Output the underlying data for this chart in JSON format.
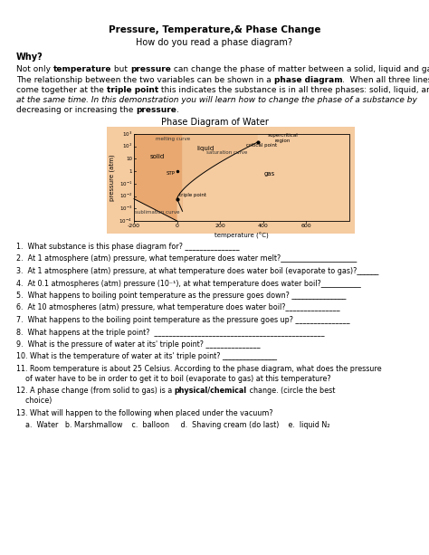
{
  "title": "Pressure, Temperature,& Phase Change",
  "subtitle": "How do you read a phase diagram?",
  "why_label": "Why?",
  "diagram_title": "Phase Diagram of Water",
  "questions": [
    "1.  What substance is this phase diagram for? _______________",
    "2.  At 1 atmosphere (atm) pressure, what temperature does water melt?_____________________",
    "3.  At 1 atmosphere (atm) pressure, at what temperature does water boil (evaporate to gas)?______",
    "4.  At 0.1 atmospheres (atm) pressure (10⁻¹), at what temperature does water boil?___________",
    "5.  What happens to boiling point temperature as the pressure goes down? _______________",
    "6.  At 10 atmospheres (atm) pressure, what temperature does water boil?_______________",
    "7.  What happens to the boiling point temperature as the pressure goes up? _______________",
    "8.  What happens at the triple point?  _______________________________________________",
    "9.  What is the pressure of water at its' triple point? _______________",
    "10. What is the temperature of water at its' triple point? _______________",
    "11. Room temperature is about 25 Celsius. According to the phase diagram, what does the pressure\n    of water have to be in order to get it to boil (evaporate to gas) at this temperature?",
    "12. A phase change (from solid to gas) is a physical/chemical change. (circle the best\n    choice)",
    "13. What will happen to the following when placed under the vacuum?",
    "    a.  Water   b. Marshmallow    c.  balloon     d.  Shaving cream (do last)    e.  liquid N₂"
  ],
  "background_color": "#ffffff",
  "diagram_bg": "#f5cba0",
  "solid_color": "#e8a870",
  "liquid_color": "#f0c090"
}
